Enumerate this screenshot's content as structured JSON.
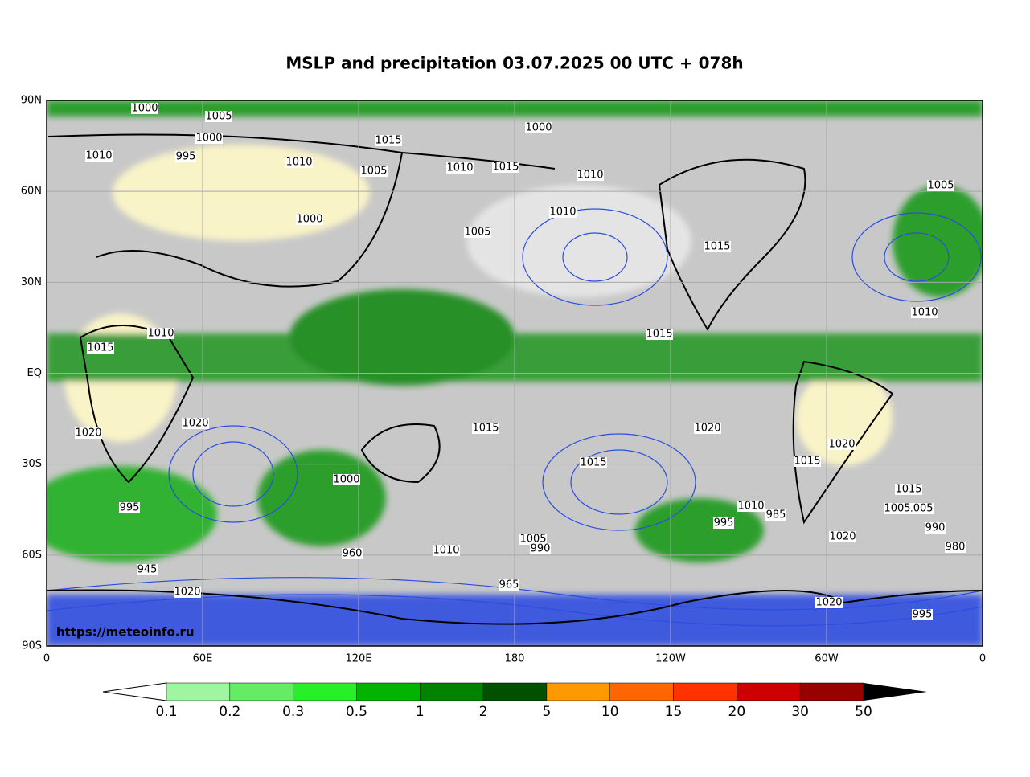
{
  "title": "MSLP and precipitation 03.07.2025 00 UTC + 078h",
  "map": {
    "y_axis_labels": [
      "90N",
      "60N",
      "30N",
      "EQ",
      "30S",
      "60S",
      "90S"
    ],
    "x_axis_labels": [
      "0",
      "60E",
      "120E",
      "180",
      "120W",
      "60W",
      "0"
    ],
    "source": "https://meteoinfo.ru",
    "isobar_labels": [
      "1000",
      "995",
      "1000",
      "1005",
      "1010",
      "1015",
      "1010",
      "1005",
      "1010",
      "1015",
      "1000",
      "1010",
      "1000",
      "1005",
      "1010",
      "1015",
      "1010",
      "1005",
      "1015",
      "1015",
      "1010",
      "1020",
      "1020",
      "1015",
      "1020",
      "1015",
      "1020",
      "1000",
      "960",
      "945",
      "995",
      "1010",
      "965",
      "1020",
      "985",
      "995",
      "1005",
      "990",
      "1020",
      "1015",
      "1005",
      "1020",
      "990",
      "995",
      "980",
      "1010",
      "1005",
      "1015"
    ]
  },
  "colorbar": {
    "labels": [
      "0.1",
      "0.2",
      "0.3",
      "0.5",
      "1",
      "2",
      "5",
      "10",
      "15",
      "20",
      "30",
      "50"
    ],
    "colors": [
      "#a0f5a0",
      "#64ec64",
      "#28f028",
      "#00b400",
      "#008400",
      "#005000",
      "#ff9900",
      "#ff6600",
      "#ff3300",
      "#cc0000",
      "#990000"
    ]
  }
}
